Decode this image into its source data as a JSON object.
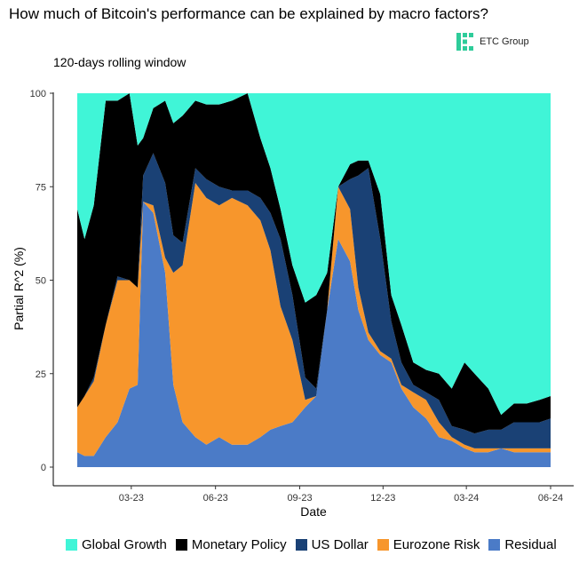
{
  "header": {
    "title": "How much of Bitcoin's performance can be explained by macro factors?",
    "subtitle": "120-days rolling window",
    "logo_text": "ETC Group",
    "logo_color": "#2ecc9a"
  },
  "chart_data": {
    "type": "area",
    "stacked": true,
    "xlabel": "Date",
    "ylabel": "Partial R^2 (%)",
    "ylim": [
      0,
      100
    ],
    "y_ticks": [
      0,
      25,
      50,
      75,
      100
    ],
    "xlim": [
      "2023-01-01",
      "2024-06-01"
    ],
    "x_ticks": [
      {
        "date": "2023-03-01",
        "label": "03-23"
      },
      {
        "date": "2023-06-01",
        "label": "06-23"
      },
      {
        "date": "2023-09-01",
        "label": "09-23"
      },
      {
        "date": "2023-12-01",
        "label": "12-23"
      },
      {
        "date": "2024-03-01",
        "label": "03-24"
      },
      {
        "date": "2024-06-01",
        "label": "06-24"
      }
    ],
    "grid": false,
    "legend_position": "bottom",
    "dates": [
      "2023-01-01",
      "2023-01-09",
      "2023-01-19",
      "2023-02-01",
      "2023-02-14",
      "2023-02-27",
      "2023-03-08",
      "2023-03-14",
      "2023-03-25",
      "2023-04-07",
      "2023-04-16",
      "2023-04-26",
      "2023-05-10",
      "2023-05-22",
      "2023-06-05",
      "2023-06-19",
      "2023-07-06",
      "2023-07-20",
      "2023-07-31",
      "2023-08-11",
      "2023-08-24",
      "2023-09-07",
      "2023-09-19",
      "2023-10-01",
      "2023-10-13",
      "2023-10-26",
      "2023-11-04",
      "2023-11-15",
      "2023-11-28",
      "2023-12-10",
      "2023-12-21",
      "2024-01-03",
      "2024-01-17",
      "2024-01-31",
      "2024-02-14",
      "2024-02-28",
      "2024-03-10",
      "2024-03-25",
      "2024-04-08",
      "2024-04-22",
      "2024-05-06",
      "2024-05-20",
      "2024-06-01"
    ],
    "series": [
      {
        "name": "Residual",
        "color": "#4b7bc7",
        "values": [
          4,
          3,
          3,
          8,
          12,
          21,
          22,
          71,
          68,
          52,
          22,
          12,
          8,
          6,
          8,
          6,
          6,
          8,
          10,
          11,
          12,
          16,
          19,
          42,
          61,
          55,
          42,
          34,
          30,
          28,
          21,
          16,
          13,
          8,
          7,
          5,
          4,
          4,
          5,
          4,
          4,
          4,
          4
        ]
      },
      {
        "name": "Eurozone Risk",
        "color": "#f7962c",
        "values": [
          12,
          16,
          20,
          30,
          38,
          29,
          26,
          0,
          2,
          4,
          30,
          42,
          68,
          66,
          62,
          66,
          64,
          58,
          48,
          32,
          22,
          2,
          0,
          0,
          14,
          14,
          6,
          2,
          1,
          1,
          1,
          4,
          5,
          4,
          1,
          1,
          1,
          1,
          0,
          1,
          1,
          1,
          1
        ]
      },
      {
        "name": "US Dollar",
        "color": "#1a4175",
        "values": [
          0,
          0,
          1,
          0,
          1,
          0,
          0,
          7,
          14,
          20,
          10,
          6,
          4,
          5,
          5,
          2,
          4,
          6,
          10,
          18,
          12,
          6,
          2,
          0,
          0,
          8,
          30,
          44,
          30,
          10,
          6,
          2,
          2,
          6,
          3,
          4,
          4,
          5,
          5,
          7,
          7,
          7,
          8
        ]
      },
      {
        "name": "Monetary Policy",
        "color": "#000000",
        "values": [
          53,
          42,
          46,
          60,
          47,
          50,
          38,
          10,
          12,
          22,
          30,
          34,
          18,
          20,
          22,
          24,
          26,
          16,
          12,
          8,
          8,
          20,
          25,
          10,
          0,
          4,
          4,
          2,
          12,
          7,
          10,
          6,
          6,
          7,
          10,
          18,
          16,
          11,
          4,
          5,
          5,
          6,
          6
        ]
      },
      {
        "name": "Global Growth",
        "color": "#40f5d7",
        "values": [
          31,
          39,
          30,
          2,
          2,
          0,
          14,
          12,
          4,
          2,
          8,
          6,
          2,
          3,
          3,
          2,
          0,
          12,
          20,
          31,
          46,
          56,
          54,
          48,
          25,
          19,
          18,
          18,
          27,
          54,
          62,
          72,
          74,
          75,
          79,
          72,
          75,
          79,
          86,
          83,
          83,
          82,
          81
        ]
      }
    ],
    "legend_order": [
      "Global Growth",
      "Monetary Policy",
      "US Dollar",
      "Eurozone Risk",
      "Residual"
    ]
  }
}
